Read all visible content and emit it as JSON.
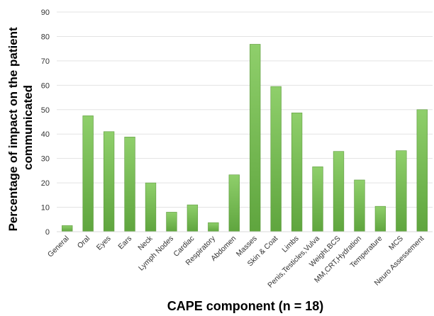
{
  "chart_data": {
    "type": "bar",
    "xlabel": "CAPE component (n = 18)",
    "ylabel_lines": [
      "Percentage of impact on the patient",
      "communicated"
    ],
    "ylim": [
      0,
      90
    ],
    "yticks": [
      0,
      10,
      20,
      30,
      40,
      50,
      60,
      70,
      80,
      90
    ],
    "grid": true,
    "legend": "none",
    "bar_color": "#7dc05a",
    "bar_color_dark": "#5e9a3e",
    "categories": [
      "General",
      "Oral",
      "Eyes",
      "Ears",
      "Neck",
      "Lymph Nodes",
      "Cardiac",
      "Respiratory",
      "Abdomen",
      "Masses",
      "Skin & Coat",
      "Limbs",
      "Penis,Testicles,Vulva",
      "Weight,BCS",
      "MM,CRT,Hydration",
      "Temperature",
      "MCS",
      "Neuro Assessement"
    ],
    "values": [
      2.5,
      47.5,
      41,
      38.8,
      20,
      8,
      11,
      3.7,
      23.3,
      76.8,
      59.5,
      48.7,
      26.6,
      32.9,
      21.2,
      10.4,
      33.2,
      50
    ]
  }
}
